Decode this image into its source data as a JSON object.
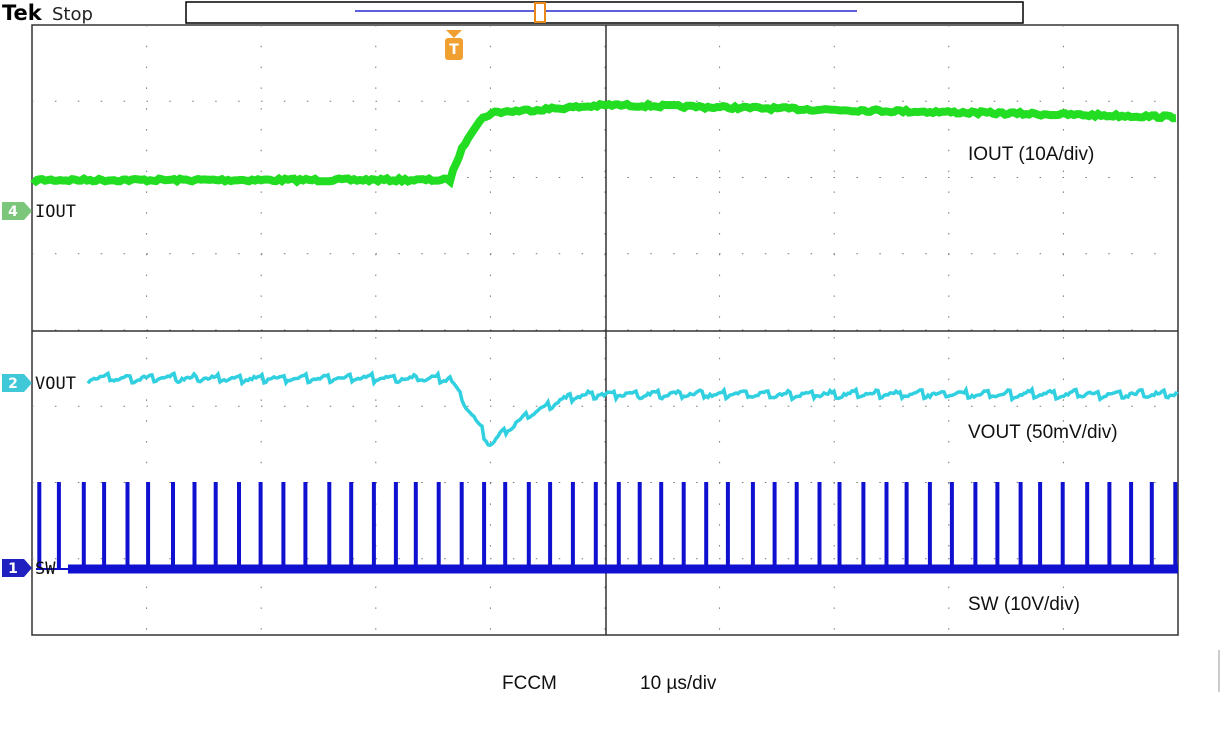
{
  "header": {
    "brand": "Tek",
    "status": "Stop"
  },
  "trigger": "T",
  "channels": [
    {
      "number": "4",
      "label": "IOUT",
      "scale": "IOUT (10A/div)"
    },
    {
      "number": "2",
      "label": "VOUT",
      "scale": "VOUT (50mV/div)"
    },
    {
      "number": "1",
      "label": "SW",
      "scale": "SW (10V/div)"
    }
  ],
  "footer": {
    "mode": "FCCM",
    "timebase": "10 µs/div"
  }
}
